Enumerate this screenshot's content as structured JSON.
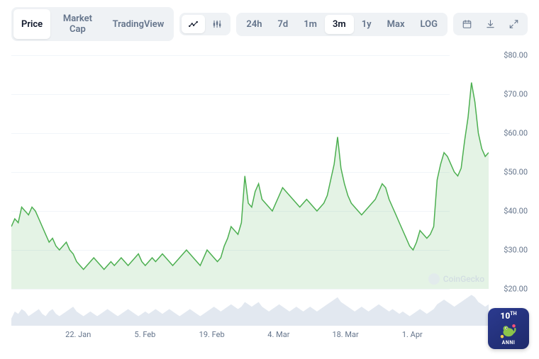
{
  "toolbar": {
    "view_tabs": [
      "Price",
      "Market Cap",
      "TradingView"
    ],
    "view_active": 0,
    "chart_style_icons": [
      "line-chart-icon",
      "candlestick-icon"
    ],
    "chart_style_active": 0,
    "range_tabs": [
      "24h",
      "7d",
      "1m",
      "3m",
      "1y",
      "Max",
      "LOG"
    ],
    "range_active": 3,
    "action_icons": [
      "calendar-icon",
      "download-icon",
      "expand-icon"
    ]
  },
  "chart": {
    "type": "line-area",
    "line_color": "#4caf50",
    "fill_color": "rgba(76,175,80,0.15)",
    "background_color": "#ffffff",
    "grid_color": "#f1f5f9",
    "y_axis": {
      "min": 20,
      "max": 80,
      "tick_step": 10,
      "ticks": [
        20,
        30,
        40,
        50,
        60,
        70,
        80
      ],
      "tick_labels": [
        "$20.00",
        "$30.00",
        "$40.00",
        "$50.00",
        "$60.00",
        "$70.00",
        "$80.00"
      ],
      "label_fontsize": 11,
      "label_color": "#64748b"
    },
    "x_axis": {
      "labels": [
        "22. Jan",
        "5. Feb",
        "19. Feb",
        "4. Mar",
        "18. Mar",
        "1. Apr"
      ],
      "positions_pct": [
        14,
        28,
        42,
        56,
        70,
        84
      ],
      "label_fontsize": 11,
      "label_color": "#64748b"
    },
    "series": [
      36,
      38,
      37,
      41,
      40,
      39,
      41,
      40,
      38,
      36,
      34,
      32,
      33,
      31,
      30,
      31,
      32,
      30,
      29,
      27,
      26,
      25,
      26,
      27,
      28,
      27,
      26,
      25,
      26,
      27,
      26,
      27,
      28,
      27,
      26,
      27,
      28,
      29,
      27,
      26,
      27,
      28,
      27,
      28,
      29,
      28,
      27,
      26,
      27,
      28,
      29,
      30,
      29,
      28,
      27,
      26,
      28,
      30,
      29,
      28,
      27,
      28,
      31,
      33,
      36,
      35,
      34,
      37,
      49,
      42,
      41,
      45,
      47,
      43,
      42,
      41,
      40,
      42,
      44,
      46,
      45,
      44,
      43,
      42,
      41,
      42,
      43,
      42,
      41,
      40,
      41,
      42,
      44,
      48,
      52,
      59,
      51,
      47,
      44,
      42,
      41,
      40,
      39,
      40,
      41,
      42,
      43,
      45,
      47,
      46,
      43,
      41,
      39,
      37,
      35,
      33,
      31,
      30,
      32,
      35,
      34,
      33,
      34,
      36,
      48,
      52,
      55,
      54,
      52,
      50,
      49,
      51,
      58,
      64,
      73,
      68,
      60,
      56,
      54,
      55
    ],
    "line_width": 1.5,
    "watermark_text": "CoinGecko"
  },
  "volume": {
    "fill_color": "#e2e8f0",
    "series": [
      3,
      6,
      5,
      7,
      6,
      4,
      5,
      6,
      7,
      5,
      4,
      6,
      7,
      5,
      4,
      5,
      6,
      7,
      8,
      6,
      5,
      4,
      5,
      6,
      5,
      4,
      5,
      6,
      7,
      6,
      5,
      4,
      5,
      6,
      7,
      6,
      5,
      4,
      5,
      6,
      5,
      6,
      7,
      6,
      5,
      6,
      7,
      6,
      5,
      4,
      5,
      6,
      7,
      6,
      5,
      4,
      5,
      6,
      7,
      8,
      7,
      6,
      7,
      8,
      9,
      8,
      7,
      8,
      10,
      9,
      8,
      9,
      10,
      8,
      7,
      6,
      7,
      8,
      9,
      8,
      7,
      6,
      7,
      8,
      7,
      6,
      7,
      8,
      7,
      6,
      7,
      8,
      9,
      10,
      11,
      12,
      10,
      9,
      8,
      7,
      6,
      7,
      8,
      7,
      6,
      7,
      8,
      9,
      8,
      7,
      6,
      7,
      6,
      5,
      6,
      5,
      4,
      5,
      6,
      7,
      6,
      5,
      6,
      7,
      9,
      10,
      11,
      10,
      9,
      8,
      9,
      10,
      11,
      12,
      13,
      12,
      10,
      9,
      8,
      9
    ]
  },
  "badge": {
    "number": "10",
    "suffix": "TH",
    "caption": "ANNI"
  }
}
